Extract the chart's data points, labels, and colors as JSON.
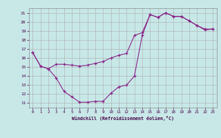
{
  "xlabel": "Windchill (Refroidissement éolien,°C)",
  "ylabel": "",
  "bg_color": "#c8e8e8",
  "line_color": "#882288",
  "grid_color": "#aaaaaa",
  "xlim": [
    -0.5,
    23.5
  ],
  "ylim": [
    10.5,
    21.5
  ],
  "xticks": [
    0,
    1,
    2,
    3,
    4,
    5,
    6,
    7,
    8,
    9,
    10,
    11,
    12,
    13,
    14,
    15,
    16,
    17,
    18,
    19,
    20,
    21,
    22,
    23
  ],
  "yticks": [
    11,
    12,
    13,
    14,
    15,
    16,
    17,
    18,
    19,
    20,
    21
  ],
  "curve1_x": [
    0,
    1,
    2,
    3,
    4,
    5,
    6,
    7,
    8,
    9,
    10,
    11,
    12,
    13,
    14,
    15,
    16,
    17,
    18,
    19,
    20,
    21,
    22,
    23
  ],
  "curve1_y": [
    16.6,
    15.1,
    14.8,
    13.8,
    12.3,
    11.7,
    11.1,
    11.1,
    11.2,
    11.2,
    12.1,
    12.8,
    13.0,
    14.0,
    18.5,
    20.8,
    20.5,
    21.0,
    20.6,
    20.6,
    20.1,
    19.6,
    19.2,
    19.2
  ],
  "curve2_x": [
    0,
    1,
    2,
    3,
    4,
    5,
    6,
    7,
    8,
    9,
    10,
    11,
    12,
    13,
    14,
    15,
    16,
    17,
    18,
    19,
    20,
    21,
    22,
    23
  ],
  "curve2_y": [
    16.6,
    15.1,
    14.8,
    15.3,
    15.3,
    15.2,
    15.1,
    15.2,
    15.4,
    15.6,
    16.0,
    16.3,
    16.5,
    18.5,
    18.8,
    20.8,
    20.5,
    21.0,
    20.6,
    20.6,
    20.1,
    19.6,
    19.1,
    19.2
  ]
}
